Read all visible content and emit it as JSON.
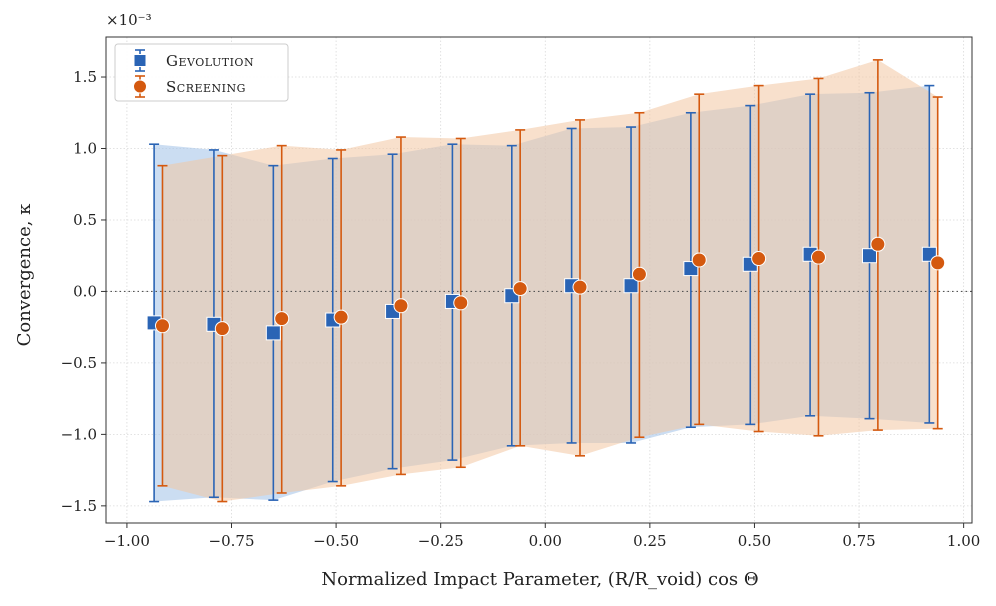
{
  "chart_data": {
    "type": "scatter",
    "title": "",
    "xlabel": "Normalized Impact Parameter, (R/R_void) cos Θ",
    "ylabel": "Convergence, κ",
    "y_scale_label": "×10⁻³",
    "xlim": [
      -1.05,
      1.02
    ],
    "ylim": [
      -1.62,
      1.78
    ],
    "xticks": [
      -1.0,
      -0.75,
      -0.5,
      -0.25,
      0.0,
      0.25,
      0.5,
      0.75,
      1.0
    ],
    "xtick_labels": [
      "−1.00",
      "−0.75",
      "−0.50",
      "−0.25",
      "0.00",
      "0.25",
      "0.50",
      "0.75",
      "1.00"
    ],
    "yticks": [
      -1.5,
      -1.0,
      -0.5,
      0.0,
      0.5,
      1.0,
      1.5
    ],
    "ytick_labels": [
      "−1.5",
      "−1.0",
      "−0.5",
      "0.0",
      "0.5",
      "1.0",
      "1.5"
    ],
    "grid": true,
    "reference_line_y": 0.0,
    "legend_position": "top-left",
    "series": [
      {
        "name": "Gevolution",
        "color": "#2a64b5",
        "band_color": "#a9c6ea",
        "marker": "square",
        "x": [
          -0.935,
          -0.792,
          -0.65,
          -0.508,
          -0.365,
          -0.222,
          -0.08,
          0.063,
          0.205,
          0.348,
          0.49,
          0.633,
          0.775,
          0.918
        ],
        "y": [
          -0.22,
          -0.23,
          -0.29,
          -0.2,
          -0.14,
          -0.07,
          -0.03,
          0.04,
          0.04,
          0.16,
          0.19,
          0.26,
          0.25,
          0.26
        ],
        "y_low": [
          -1.47,
          -1.44,
          -1.46,
          -1.33,
          -1.24,
          -1.18,
          -1.08,
          -1.06,
          -1.06,
          -0.95,
          -0.93,
          -0.87,
          -0.89,
          -0.92
        ],
        "y_high": [
          1.03,
          0.99,
          0.88,
          0.93,
          0.96,
          1.03,
          1.02,
          1.14,
          1.15,
          1.25,
          1.3,
          1.38,
          1.39,
          1.44
        ]
      },
      {
        "name": "Screening",
        "color": "#d4590f",
        "band_color": "#f3c6a3",
        "marker": "circle",
        "x": [
          -0.915,
          -0.772,
          -0.63,
          -0.488,
          -0.345,
          -0.202,
          -0.06,
          0.083,
          0.225,
          0.368,
          0.51,
          0.653,
          0.795,
          0.938
        ],
        "y": [
          -0.24,
          -0.26,
          -0.19,
          -0.18,
          -0.1,
          -0.08,
          0.02,
          0.03,
          0.12,
          0.22,
          0.23,
          0.24,
          0.33,
          0.2
        ],
        "y_low": [
          -1.36,
          -1.47,
          -1.41,
          -1.36,
          -1.28,
          -1.23,
          -1.08,
          -1.15,
          -1.02,
          -0.93,
          -0.98,
          -1.01,
          -0.97,
          -0.96
        ],
        "y_high": [
          0.88,
          0.95,
          1.02,
          0.99,
          1.08,
          1.07,
          1.13,
          1.2,
          1.25,
          1.38,
          1.44,
          1.49,
          1.62,
          1.36
        ]
      }
    ]
  }
}
